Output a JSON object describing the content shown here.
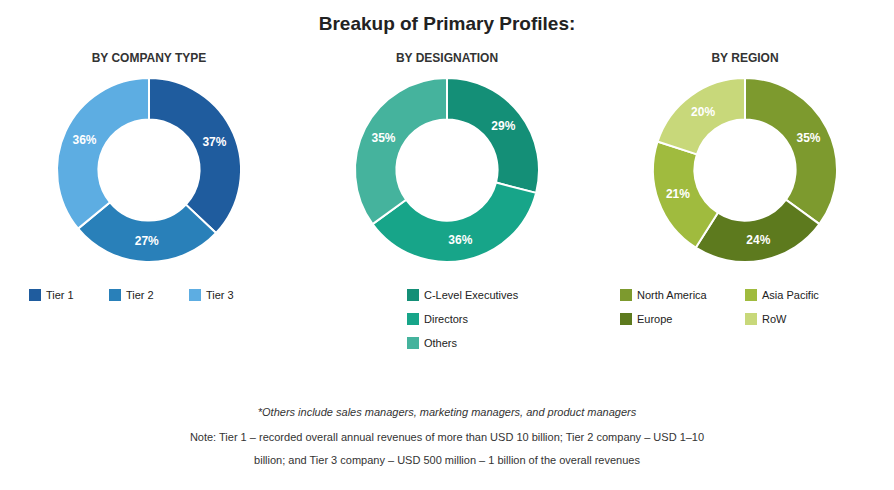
{
  "title": "Breakup of Primary Profiles:",
  "chart_data": [
    {
      "type": "pie",
      "title": "BY COMPANY TYPE",
      "categories": [
        "Tier 1",
        "Tier 2",
        "Tier 3"
      ],
      "values": [
        37,
        27,
        36
      ],
      "value_labels": [
        "37%",
        "27%",
        "36%"
      ],
      "colors": [
        "#1f5c9e",
        "#2980b9",
        "#5dade2"
      ],
      "data_labels": true
    },
    {
      "type": "pie",
      "title": "BY DESIGNATION",
      "categories": [
        "C-Level Executives",
        "Directors",
        "Others"
      ],
      "values": [
        29,
        36,
        35
      ],
      "value_labels": [
        "29%",
        "36%",
        "35%"
      ],
      "colors": [
        "#148f77",
        "#17a589",
        "#45b39d"
      ],
      "data_labels": true
    },
    {
      "type": "pie",
      "title": "BY REGION",
      "categories": [
        "North America",
        "Europe",
        "Asia Pacific",
        "RoW"
      ],
      "values": [
        35,
        24,
        21,
        20
      ],
      "value_labels": [
        "35%",
        "24%",
        "21%",
        "20%"
      ],
      "colors": [
        "#7d9a2e",
        "#5d7a1e",
        "#a0bb3e",
        "#c8d87a"
      ],
      "data_labels": true
    }
  ],
  "annotations": [
    "*Others include sales managers, marketing managers, and product managers",
    "Note: Tier 1 – recorded overall annual revenues of more than USD 10 billion; Tier 2 company – USD 1–10",
    "billion; and Tier 3 company – USD 500 million – 1 billion of the overall revenues"
  ]
}
